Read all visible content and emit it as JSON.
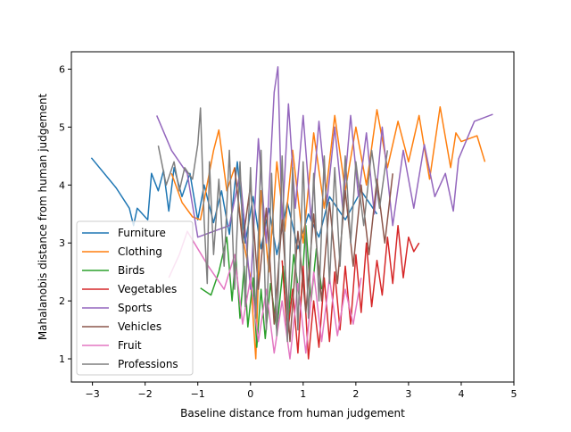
{
  "chart_data": {
    "type": "line",
    "title": "",
    "xlabel": "Baseline distance from human judgement",
    "ylabel": "Mahalanobis distance from human judgement",
    "xlim": [
      -3.4,
      5.0
    ],
    "ylim": [
      0.6,
      6.3
    ],
    "xticks": [
      -3,
      -2,
      -1,
      0,
      1,
      2,
      3,
      4,
      5
    ],
    "yticks": [
      1,
      2,
      3,
      4,
      5,
      6
    ],
    "grid": false,
    "legend_position": "lower-left",
    "series": [
      {
        "name": "Furniture",
        "color": "#1f77b4",
        "points": [
          [
            -3.02,
            4.47
          ],
          [
            -2.55,
            3.95
          ],
          [
            -2.3,
            3.6
          ],
          [
            -2.22,
            3.3
          ],
          [
            -2.15,
            3.6
          ],
          [
            -1.95,
            3.4
          ],
          [
            -1.88,
            4.2
          ],
          [
            -1.75,
            3.9
          ],
          [
            -1.65,
            4.25
          ],
          [
            -1.55,
            3.55
          ],
          [
            -1.45,
            4.3
          ],
          [
            -1.3,
            3.8
          ],
          [
            -1.15,
            4.2
          ],
          [
            -1.0,
            3.4
          ],
          [
            -0.88,
            4.0
          ],
          [
            -0.7,
            3.35
          ],
          [
            -0.55,
            3.9
          ],
          [
            -0.4,
            3.15
          ],
          [
            -0.25,
            4.4
          ],
          [
            -0.1,
            3.0
          ],
          [
            0.05,
            3.8
          ],
          [
            0.2,
            2.9
          ],
          [
            0.35,
            3.6
          ],
          [
            0.5,
            2.8
          ],
          [
            0.7,
            3.7
          ],
          [
            0.9,
            2.9
          ],
          [
            1.1,
            3.5
          ],
          [
            1.3,
            3.1
          ],
          [
            1.5,
            3.8
          ],
          [
            1.8,
            3.4
          ],
          [
            2.1,
            3.9
          ],
          [
            2.4,
            3.5
          ]
        ]
      },
      {
        "name": "Clothing",
        "color": "#ff7f0e",
        "points": [
          [
            -1.5,
            4.2
          ],
          [
            -1.3,
            3.7
          ],
          [
            -1.1,
            3.45
          ],
          [
            -0.95,
            3.4
          ],
          [
            -0.7,
            4.6
          ],
          [
            -0.6,
            4.95
          ],
          [
            -0.45,
            3.9
          ],
          [
            -0.3,
            4.3
          ],
          [
            -0.15,
            3.1
          ],
          [
            0.0,
            2.4
          ],
          [
            0.1,
            1.0
          ],
          [
            0.2,
            3.9
          ],
          [
            0.35,
            2.5
          ],
          [
            0.5,
            4.4
          ],
          [
            0.65,
            3.2
          ],
          [
            0.8,
            4.6
          ],
          [
            1.0,
            3.0
          ],
          [
            1.2,
            4.9
          ],
          [
            1.4,
            3.6
          ],
          [
            1.6,
            5.2
          ],
          [
            1.8,
            3.9
          ],
          [
            2.0,
            5.0
          ],
          [
            2.2,
            4.0
          ],
          [
            2.4,
            5.3
          ],
          [
            2.6,
            4.3
          ],
          [
            2.8,
            5.1
          ],
          [
            3.0,
            4.4
          ],
          [
            3.2,
            5.2
          ],
          [
            3.4,
            4.1
          ],
          [
            3.6,
            5.35
          ],
          [
            3.8,
            4.3
          ],
          [
            3.9,
            4.9
          ],
          [
            4.0,
            4.75
          ],
          [
            4.3,
            4.85
          ],
          [
            4.45,
            4.4
          ]
        ]
      },
      {
        "name": "Birds",
        "color": "#2ca02c",
        "points": [
          [
            -0.95,
            2.22
          ],
          [
            -0.75,
            2.1
          ],
          [
            -0.6,
            2.5
          ],
          [
            -0.45,
            3.1
          ],
          [
            -0.35,
            2.0
          ],
          [
            -0.28,
            2.8
          ],
          [
            -0.2,
            1.7
          ],
          [
            -0.12,
            2.6
          ],
          [
            -0.05,
            1.55
          ],
          [
            0.05,
            2.4
          ],
          [
            0.12,
            1.2
          ],
          [
            0.2,
            2.2
          ],
          [
            0.28,
            1.35
          ],
          [
            0.38,
            2.3
          ],
          [
            0.5,
            1.5
          ],
          [
            0.62,
            2.6
          ],
          [
            0.72,
            1.7
          ],
          [
            0.82,
            2.8
          ],
          [
            0.95,
            1.9
          ],
          [
            1.05,
            3.3
          ],
          [
            1.15,
            2.0
          ],
          [
            1.25,
            2.9
          ],
          [
            1.35,
            2.2
          ]
        ]
      },
      {
        "name": "Vegetables",
        "color": "#d62728",
        "points": [
          [
            0.6,
            2.7
          ],
          [
            0.7,
            1.4
          ],
          [
            0.8,
            2.2
          ],
          [
            0.9,
            1.1
          ],
          [
            1.0,
            2.6
          ],
          [
            1.1,
            1.0
          ],
          [
            1.2,
            2.0
          ],
          [
            1.3,
            1.2
          ],
          [
            1.4,
            2.4
          ],
          [
            1.5,
            1.3
          ],
          [
            1.6,
            2.5
          ],
          [
            1.7,
            1.5
          ],
          [
            1.8,
            2.6
          ],
          [
            1.9,
            1.6
          ],
          [
            2.0,
            2.8
          ],
          [
            2.1,
            1.8
          ],
          [
            2.2,
            3.0
          ],
          [
            2.3,
            1.9
          ],
          [
            2.4,
            2.7
          ],
          [
            2.5,
            2.1
          ],
          [
            2.6,
            3.1
          ],
          [
            2.7,
            2.3
          ],
          [
            2.8,
            3.3
          ],
          [
            2.9,
            2.4
          ],
          [
            3.0,
            3.1
          ],
          [
            3.1,
            2.85
          ],
          [
            3.2,
            3.0
          ]
        ]
      },
      {
        "name": "Sports",
        "color": "#9467bd",
        "points": [
          [
            -1.78,
            5.2
          ],
          [
            -1.5,
            4.6
          ],
          [
            -1.2,
            4.2
          ],
          [
            -1.0,
            3.1
          ],
          [
            -0.7,
            3.2
          ],
          [
            -0.4,
            3.3
          ],
          [
            -0.2,
            4.2
          ],
          [
            0.0,
            2.2
          ],
          [
            0.15,
            4.8
          ],
          [
            0.3,
            3.0
          ],
          [
            0.45,
            5.6
          ],
          [
            0.52,
            6.04
          ],
          [
            0.6,
            3.3
          ],
          [
            0.72,
            5.4
          ],
          [
            0.85,
            3.6
          ],
          [
            1.0,
            5.2
          ],
          [
            1.15,
            3.4
          ],
          [
            1.3,
            5.1
          ],
          [
            1.45,
            3.7
          ],
          [
            1.6,
            5.0
          ],
          [
            1.75,
            3.6
          ],
          [
            1.9,
            5.2
          ],
          [
            2.05,
            3.8
          ],
          [
            2.2,
            4.9
          ],
          [
            2.35,
            3.5
          ],
          [
            2.5,
            5.0
          ],
          [
            2.7,
            3.3
          ],
          [
            2.9,
            4.6
          ],
          [
            3.1,
            3.6
          ],
          [
            3.3,
            4.7
          ],
          [
            3.5,
            3.8
          ],
          [
            3.7,
            4.2
          ],
          [
            3.85,
            3.55
          ],
          [
            3.95,
            4.45
          ],
          [
            4.25,
            5.1
          ],
          [
            4.6,
            5.22
          ]
        ]
      },
      {
        "name": "Vehicles",
        "color": "#8c564b",
        "points": [
          [
            -0.3,
            4.3
          ],
          [
            -0.15,
            3.0
          ],
          [
            0.0,
            4.0
          ],
          [
            0.15,
            2.2
          ],
          [
            0.3,
            3.6
          ],
          [
            0.45,
            1.6
          ],
          [
            0.6,
            3.4
          ],
          [
            0.75,
            1.3
          ],
          [
            0.9,
            3.2
          ],
          [
            1.05,
            1.8
          ],
          [
            1.2,
            3.5
          ],
          [
            1.35,
            2.0
          ],
          [
            1.5,
            3.7
          ],
          [
            1.65,
            2.3
          ],
          [
            1.8,
            3.9
          ],
          [
            1.95,
            2.6
          ],
          [
            2.1,
            4.0
          ],
          [
            2.25,
            2.8
          ],
          [
            2.4,
            4.1
          ],
          [
            2.55,
            3.0
          ],
          [
            2.7,
            4.2
          ]
        ]
      },
      {
        "name": "Fruit",
        "color": "#e377c2",
        "points": [
          [
            -1.55,
            2.4
          ],
          [
            -1.35,
            2.8
          ],
          [
            -1.2,
            3.2
          ],
          [
            -1.0,
            2.9
          ],
          [
            -0.8,
            2.6
          ],
          [
            -0.5,
            2.2
          ],
          [
            -0.3,
            2.8
          ],
          [
            -0.15,
            1.6
          ],
          [
            0.0,
            2.4
          ],
          [
            0.15,
            1.3
          ],
          [
            0.3,
            2.2
          ],
          [
            0.45,
            1.1
          ],
          [
            0.6,
            2.0
          ],
          [
            0.75,
            1.0
          ],
          [
            0.9,
            2.3
          ],
          [
            1.05,
            1.1
          ],
          [
            1.2,
            2.5
          ],
          [
            1.35,
            1.3
          ],
          [
            1.5,
            2.4
          ],
          [
            1.65,
            1.4
          ],
          [
            1.8,
            2.2
          ],
          [
            1.95,
            1.6
          ],
          [
            2.1,
            2.4
          ]
        ]
      },
      {
        "name": "Professions",
        "color": "#7f7f7f",
        "points": [
          [
            -1.75,
            4.68
          ],
          [
            -1.6,
            4.0
          ],
          [
            -1.45,
            4.4
          ],
          [
            -1.35,
            3.9
          ],
          [
            -1.25,
            4.3
          ],
          [
            -1.1,
            4.1
          ],
          [
            -1.0,
            4.7
          ],
          [
            -0.95,
            5.33
          ],
          [
            -0.88,
            3.4
          ],
          [
            -0.82,
            2.3
          ],
          [
            -0.78,
            4.4
          ],
          [
            -0.7,
            2.8
          ],
          [
            -0.6,
            4.1
          ],
          [
            -0.5,
            2.6
          ],
          [
            -0.4,
            4.6
          ],
          [
            -0.3,
            2.2
          ],
          [
            -0.2,
            4.4
          ],
          [
            -0.1,
            1.9
          ],
          [
            0.0,
            4.3
          ],
          [
            0.1,
            1.7
          ],
          [
            0.2,
            4.6
          ],
          [
            0.3,
            1.5
          ],
          [
            0.4,
            4.2
          ],
          [
            0.5,
            1.4
          ],
          [
            0.6,
            4.5
          ],
          [
            0.7,
            1.3
          ],
          [
            0.8,
            4.3
          ],
          [
            0.9,
            1.5
          ],
          [
            1.0,
            4.4
          ],
          [
            1.1,
            1.7
          ],
          [
            1.2,
            4.2
          ],
          [
            1.3,
            2.0
          ],
          [
            1.4,
            4.5
          ],
          [
            1.5,
            2.3
          ],
          [
            1.6,
            4.3
          ],
          [
            1.7,
            2.6
          ],
          [
            1.8,
            4.5
          ],
          [
            1.9,
            3.0
          ],
          [
            2.0,
            4.4
          ],
          [
            2.15,
            3.3
          ],
          [
            2.3,
            4.6
          ],
          [
            2.45,
            3.6
          ],
          [
            2.6,
            4.6
          ]
        ]
      }
    ]
  }
}
